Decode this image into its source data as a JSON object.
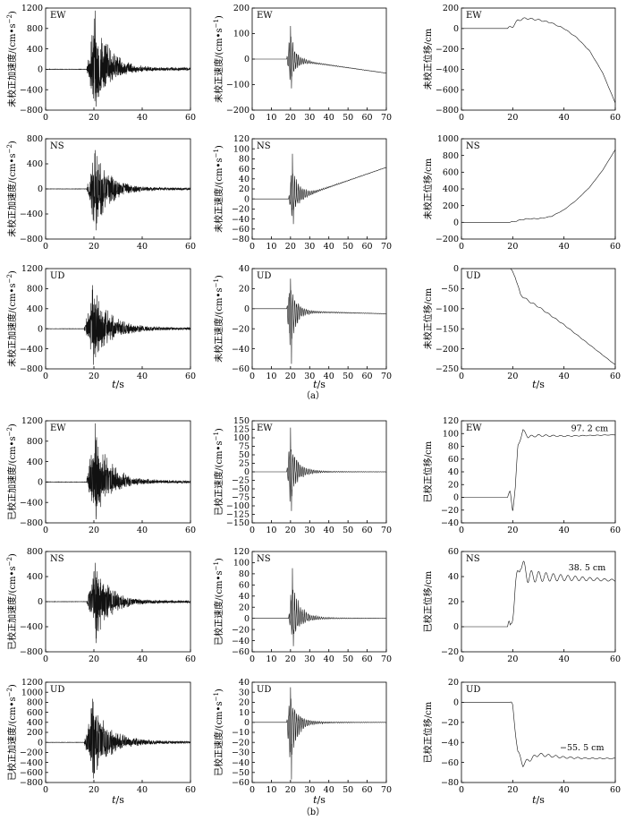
{
  "xlabel": "t/s",
  "xlabel_italic": "t",
  "xlabel_unit": "/s",
  "sublabels": [
    "（a）",
    "（b）"
  ],
  "chart_data": [
    {
      "type": "line",
      "panel": "a1",
      "component": "EW",
      "ylabel": "未校正加速度/(cm·s⁻²)",
      "ylabel_parts": [
        "未校正加速度/(cm•s",
        "−2",
        ")"
      ],
      "xlim": [
        0,
        60
      ],
      "ylim": [
        -800,
        1200
      ],
      "xticks": [
        0,
        20,
        40,
        60
      ],
      "yticks": [
        -800,
        -400,
        0,
        400,
        800,
        1200
      ],
      "yticklabels": [
        "−800",
        "−400",
        "0",
        "400",
        "800",
        "1200"
      ],
      "signal": {
        "kind": "accel",
        "onset": 17,
        "peak": 1150,
        "trough": -730,
        "decay": 6
      }
    },
    {
      "type": "line",
      "panel": "a2",
      "component": "EW",
      "ylabel": "未校正速度/(cm·s⁻¹)",
      "ylabel_parts": [
        "未校正速度/(cm•s",
        "−1",
        ")"
      ],
      "xlim": [
        0,
        70
      ],
      "ylim": [
        -200,
        200
      ],
      "xticks": [
        0,
        10,
        20,
        30,
        40,
        50,
        60,
        70
      ],
      "yticks": [
        -200,
        -100,
        0,
        100,
        200
      ],
      "yticklabels": [
        "−200",
        "−100",
        "0",
        "100",
        "200"
      ],
      "signal": {
        "kind": "vel",
        "onset": 18,
        "peak": 130,
        "trough": -115,
        "decay": 3,
        "drift": [
          [
            18,
            0
          ],
          [
            70,
            -55
          ]
        ]
      }
    },
    {
      "type": "line",
      "panel": "a3",
      "component": "EW",
      "ylabel": "未校正位移/cm",
      "xlim": [
        0,
        60
      ],
      "ylim": [
        -800,
        200
      ],
      "xticks": [
        0,
        20,
        40,
        60
      ],
      "yticks": [
        -800,
        -600,
        -400,
        -200,
        0,
        200
      ],
      "yticklabels": [
        "−800",
        "−600",
        "−400",
        "−200",
        "0",
        "200"
      ],
      "signal": {
        "kind": "disp",
        "onset": 18,
        "wiggle": 12,
        "curve": [
          [
            0,
            0
          ],
          [
            18,
            0
          ],
          [
            20,
            20
          ],
          [
            22,
            80
          ],
          [
            25,
            100
          ],
          [
            30,
            85
          ],
          [
            35,
            55
          ],
          [
            40,
            0
          ],
          [
            45,
            -90
          ],
          [
            50,
            -220
          ],
          [
            55,
            -430
          ],
          [
            60,
            -730
          ]
        ]
      }
    },
    {
      "type": "line",
      "panel": "a4",
      "component": "NS",
      "ylabel": "未校正加速度/(cm·s⁻²)",
      "ylabel_parts": [
        "未校正加速度/(cm•s",
        "−2",
        ")"
      ],
      "xlim": [
        0,
        60
      ],
      "ylim": [
        -800,
        800
      ],
      "xticks": [
        0,
        20,
        40,
        60
      ],
      "yticks": [
        -800,
        -400,
        0,
        400,
        800
      ],
      "yticklabels": [
        "−800",
        "−400",
        "0",
        "400",
        "800"
      ],
      "signal": {
        "kind": "accel",
        "onset": 17,
        "peak": 620,
        "trough": -660,
        "decay": 6
      }
    },
    {
      "type": "line",
      "panel": "a5",
      "component": "NS",
      "ylabel": "未校正速度/(cm·s⁻¹)",
      "ylabel_parts": [
        "未校正速度/(cm•s",
        "−1",
        ")"
      ],
      "xlim": [
        0,
        70
      ],
      "ylim": [
        -80,
        120
      ],
      "xticks": [
        0,
        10,
        20,
        30,
        40,
        50,
        60,
        70
      ],
      "yticks": [
        -80,
        -60,
        -40,
        -20,
        0,
        20,
        40,
        60,
        80,
        100,
        120
      ],
      "yticklabels": [
        "−80",
        "−60",
        "−40",
        "−20",
        "0",
        "20",
        "40",
        "60",
        "80",
        "100",
        "120"
      ],
      "signal": {
        "kind": "vel",
        "onset": 19,
        "peak": 90,
        "trough": -50,
        "decay": 3.5,
        "drift": [
          [
            19,
            0
          ],
          [
            30,
            10
          ],
          [
            70,
            63
          ]
        ]
      }
    },
    {
      "type": "line",
      "panel": "a6",
      "component": "NS",
      "ylabel": "未校正位移/cm",
      "xlim": [
        0,
        60
      ],
      "ylim": [
        -200,
        1000
      ],
      "xticks": [
        0,
        20,
        40,
        60
      ],
      "yticks": [
        -200,
        0,
        200,
        400,
        600,
        800,
        1000
      ],
      "yticklabels": [
        "−200",
        "0",
        "200",
        "400",
        "600",
        "800",
        "1000"
      ],
      "signal": {
        "kind": "disp",
        "onset": 19,
        "wiggle": 6,
        "curve": [
          [
            0,
            0
          ],
          [
            19,
            0
          ],
          [
            25,
            40
          ],
          [
            30,
            45
          ],
          [
            35,
            70
          ],
          [
            40,
            150
          ],
          [
            45,
            270
          ],
          [
            50,
            420
          ],
          [
            55,
            620
          ],
          [
            60,
            870
          ]
        ]
      }
    },
    {
      "type": "line",
      "panel": "a7",
      "component": "UD",
      "ylabel": "未校正加速度/(cm·s⁻²)",
      "ylabel_parts": [
        "未校正加速度/(cm•s",
        "−2",
        ")"
      ],
      "xlim": [
        0,
        60
      ],
      "ylim": [
        -800,
        1200
      ],
      "xticks": [
        0,
        20,
        40,
        60
      ],
      "yticks": [
        -800,
        -400,
        0,
        400,
        800,
        1200
      ],
      "yticklabels": [
        "−800",
        "−400",
        "0",
        "400",
        "800",
        "1200"
      ],
      "signal": {
        "kind": "accel",
        "onset": 16,
        "peak": 870,
        "trough": -720,
        "decay": 7
      }
    },
    {
      "type": "line",
      "panel": "a8",
      "component": "UD",
      "ylabel": "未校正速度/(cm·s⁻¹)",
      "ylabel_parts": [
        "未校正速度/(cm•s",
        "−1",
        ")"
      ],
      "xlim": [
        0,
        70
      ],
      "ylim": [
        -60,
        40
      ],
      "xticks": [
        0,
        10,
        20,
        30,
        40,
        50,
        60,
        70
      ],
      "yticks": [
        -60,
        -40,
        -20,
        0,
        20,
        40
      ],
      "yticklabels": [
        "−60",
        "−40",
        "−20",
        "0",
        "20",
        "40"
      ],
      "signal": {
        "kind": "vel",
        "onset": 18,
        "peak": 30,
        "trough": -55,
        "decay": 3,
        "drift": [
          [
            18,
            0
          ],
          [
            30,
            -3
          ],
          [
            70,
            -5
          ]
        ]
      }
    },
    {
      "type": "line",
      "panel": "a9",
      "component": "UD",
      "ylabel": "未校正位移/cm",
      "xlim": [
        0,
        60
      ],
      "ylim": [
        -250,
        0
      ],
      "xticks": [
        0,
        20,
        40,
        60
      ],
      "yticks": [
        -250,
        -200,
        -150,
        -100,
        -50,
        0
      ],
      "yticklabels": [
        "−250",
        "−200",
        "−150",
        "−100",
        "−50",
        "0"
      ],
      "signal": {
        "kind": "disp",
        "onset": 19,
        "wiggle": 3,
        "curve": [
          [
            0,
            0
          ],
          [
            19,
            0
          ],
          [
            21,
            -20
          ],
          [
            23,
            -65
          ],
          [
            26,
            -80
          ],
          [
            30,
            -95
          ],
          [
            40,
            -140
          ],
          [
            50,
            -190
          ],
          [
            60,
            -240
          ]
        ]
      }
    },
    {
      "type": "line",
      "panel": "b1",
      "component": "EW",
      "ylabel": "已校正加速度/(cm·s⁻²)",
      "ylabel_parts": [
        "已校正加速度/(cm•s",
        "−2",
        ")"
      ],
      "xlim": [
        0,
        60
      ],
      "ylim": [
        -800,
        1200
      ],
      "xticks": [
        0,
        20,
        40,
        60
      ],
      "yticks": [
        -800,
        -400,
        0,
        400,
        800,
        1200
      ],
      "yticklabels": [
        "−800",
        "−400",
        "0",
        "400",
        "800",
        "1200"
      ],
      "signal": {
        "kind": "accel",
        "onset": 17,
        "peak": 1150,
        "trough": -730,
        "decay": 6
      }
    },
    {
      "type": "line",
      "panel": "b2",
      "component": "EW",
      "ylabel": "已校正速度/(cm·s⁻¹)",
      "ylabel_parts": [
        "已校正速度/(cm•s",
        "−1",
        ")"
      ],
      "xlim": [
        0,
        70
      ],
      "ylim": [
        -150,
        150
      ],
      "xticks": [
        0,
        10,
        20,
        30,
        40,
        50,
        60,
        70
      ],
      "yticks": [
        -150,
        -125,
        -100,
        -75,
        -50,
        -25,
        0,
        25,
        50,
        75,
        100,
        125,
        150
      ],
      "yticklabels": [
        "−150",
        "−125",
        "−100",
        "−75",
        "−50",
        "−25",
        "0",
        "25",
        "50",
        "75",
        "100",
        "125",
        "150"
      ],
      "signal": {
        "kind": "vel",
        "onset": 18,
        "peak": 130,
        "trough": -115,
        "decay": 3.5,
        "drift": [
          [
            18,
            0
          ],
          [
            70,
            0
          ]
        ]
      }
    },
    {
      "type": "line",
      "panel": "b3",
      "component": "EW",
      "ylabel": "已校正位移/cm",
      "xlim": [
        0,
        60
      ],
      "ylim": [
        -40,
        120
      ],
      "xticks": [
        0,
        20,
        40,
        60
      ],
      "yticks": [
        -40,
        -20,
        0,
        20,
        40,
        60,
        80,
        100,
        120
      ],
      "yticklabels": [
        "−40",
        "−20",
        "0",
        "20",
        "40",
        "60",
        "80",
        "100",
        "120"
      ],
      "annotation": "97. 2 cm",
      "annotation_x": 50,
      "annotation_y": 104,
      "signal": {
        "kind": "disp",
        "onset": 18,
        "wiggle": 3,
        "curve": [
          [
            0,
            0
          ],
          [
            18,
            0
          ],
          [
            19,
            8
          ],
          [
            20,
            -20
          ],
          [
            21,
            15
          ],
          [
            22,
            80
          ],
          [
            24,
            105
          ],
          [
            26,
            95
          ],
          [
            30,
            97
          ],
          [
            40,
            96
          ],
          [
            50,
            97
          ],
          [
            60,
            98
          ]
        ]
      }
    },
    {
      "type": "line",
      "panel": "b4",
      "component": "NS",
      "ylabel": "已校正加速度/(cm·s⁻²)",
      "ylabel_parts": [
        "已校正加速度/(cm•s",
        "−2",
        ")"
      ],
      "xlim": [
        0,
        60
      ],
      "ylim": [
        -800,
        800
      ],
      "xticks": [
        0,
        20,
        40,
        60
      ],
      "yticks": [
        -800,
        -400,
        0,
        400,
        800
      ],
      "yticklabels": [
        "−800",
        "−400",
        "0",
        "400",
        "800"
      ],
      "signal": {
        "kind": "accel",
        "onset": 17,
        "peak": 620,
        "trough": -660,
        "decay": 6
      }
    },
    {
      "type": "line",
      "panel": "b5",
      "component": "NS",
      "ylabel": "已校正速度/(cm·s⁻¹)",
      "ylabel_parts": [
        "已校正速度/(cm•s",
        "−1",
        ")"
      ],
      "xlim": [
        0,
        70
      ],
      "ylim": [
        -60,
        120
      ],
      "xticks": [
        0,
        10,
        20,
        30,
        40,
        50,
        60,
        70
      ],
      "yticks": [
        -60,
        -40,
        -20,
        0,
        20,
        40,
        60,
        80,
        100,
        120
      ],
      "yticklabels": [
        "−60",
        "−40",
        "−20",
        "0",
        "20",
        "40",
        "60",
        "80",
        "100",
        "120"
      ],
      "signal": {
        "kind": "vel",
        "onset": 19,
        "peak": 90,
        "trough": -50,
        "decay": 4,
        "drift": [
          [
            19,
            0
          ],
          [
            70,
            0
          ]
        ]
      }
    },
    {
      "type": "line",
      "panel": "b6",
      "component": "NS",
      "ylabel": "已校正位移/cm",
      "xlim": [
        0,
        60
      ],
      "ylim": [
        -20,
        60
      ],
      "xticks": [
        0,
        20,
        40,
        60
      ],
      "yticks": [
        -20,
        0,
        20,
        40,
        60
      ],
      "yticklabels": [
        "−20",
        "0",
        "20",
        "40",
        "60"
      ],
      "annotation": "38. 5 cm",
      "annotation_x": 49,
      "annotation_y": 45,
      "signal": {
        "kind": "disp",
        "onset": 18,
        "wiggle": 8,
        "curve": [
          [
            0,
            0
          ],
          [
            18,
            0
          ],
          [
            19,
            -5
          ],
          [
            21,
            30
          ],
          [
            23,
            52
          ],
          [
            26,
            40
          ],
          [
            30,
            40
          ],
          [
            40,
            39
          ],
          [
            50,
            38
          ],
          [
            60,
            37
          ]
        ]
      }
    },
    {
      "type": "line",
      "panel": "b7",
      "component": "UD",
      "ylabel": "已校正加速度/(cm·s⁻²)",
      "ylabel_parts": [
        "已校正加速度/(cm•s",
        "−2",
        ")"
      ],
      "xlim": [
        0,
        60
      ],
      "ylim": [
        -800,
        1200
      ],
      "xticks": [
        0,
        20,
        40,
        60
      ],
      "yticks": [
        -800,
        -600,
        -400,
        -200,
        0,
        200,
        400,
        600,
        800,
        1000,
        1200
      ],
      "yticklabels": [
        "−800",
        "−600",
        "−400",
        "−200",
        "0",
        "200",
        "400",
        "600",
        "800",
        "1000",
        "1200"
      ],
      "signal": {
        "kind": "accel",
        "onset": 16,
        "peak": 870,
        "trough": -720,
        "decay": 7
      }
    },
    {
      "type": "line",
      "panel": "b8",
      "component": "UD",
      "ylabel": "已校正速度/(cm·s⁻¹)",
      "ylabel_parts": [
        "已校正速度/(cm•s",
        "−1",
        ")"
      ],
      "xlim": [
        0,
        70
      ],
      "ylim": [
        -60,
        40
      ],
      "xticks": [
        0,
        10,
        20,
        30,
        40,
        50,
        60,
        70
      ],
      "yticks": [
        -60,
        -50,
        -40,
        -30,
        -20,
        -10,
        0,
        10,
        20,
        30,
        40
      ],
      "yticklabels": [
        "−60",
        "−50",
        "−40",
        "−30",
        "−20",
        "−10",
        "0",
        "10",
        "20",
        "30",
        "40"
      ],
      "signal": {
        "kind": "vel",
        "onset": 18,
        "peak": 35,
        "trough": -57,
        "decay": 3.5,
        "drift": [
          [
            18,
            0
          ],
          [
            70,
            0
          ]
        ]
      }
    },
    {
      "type": "line",
      "panel": "b9",
      "component": "UD",
      "ylabel": "已校正位移/cm",
      "xlim": [
        0,
        60
      ],
      "ylim": [
        -80,
        20
      ],
      "xticks": [
        0,
        20,
        40,
        60
      ],
      "yticks": [
        -80,
        -60,
        -40,
        -20,
        0,
        20
      ],
      "yticklabels": [
        "−80",
        "−60",
        "−40",
        "−20",
        "0",
        "20"
      ],
      "annotation": "−55. 5 cm",
      "annotation_x": 47,
      "annotation_y": -48,
      "signal": {
        "kind": "disp",
        "onset": 19,
        "wiggle": 3,
        "curve": [
          [
            0,
            0
          ],
          [
            19,
            0
          ],
          [
            20,
            -5
          ],
          [
            22,
            -50
          ],
          [
            24,
            -62
          ],
          [
            26,
            -58
          ],
          [
            30,
            -52
          ],
          [
            40,
            -55
          ],
          [
            50,
            -56
          ],
          [
            60,
            -56
          ]
        ]
      }
    }
  ]
}
